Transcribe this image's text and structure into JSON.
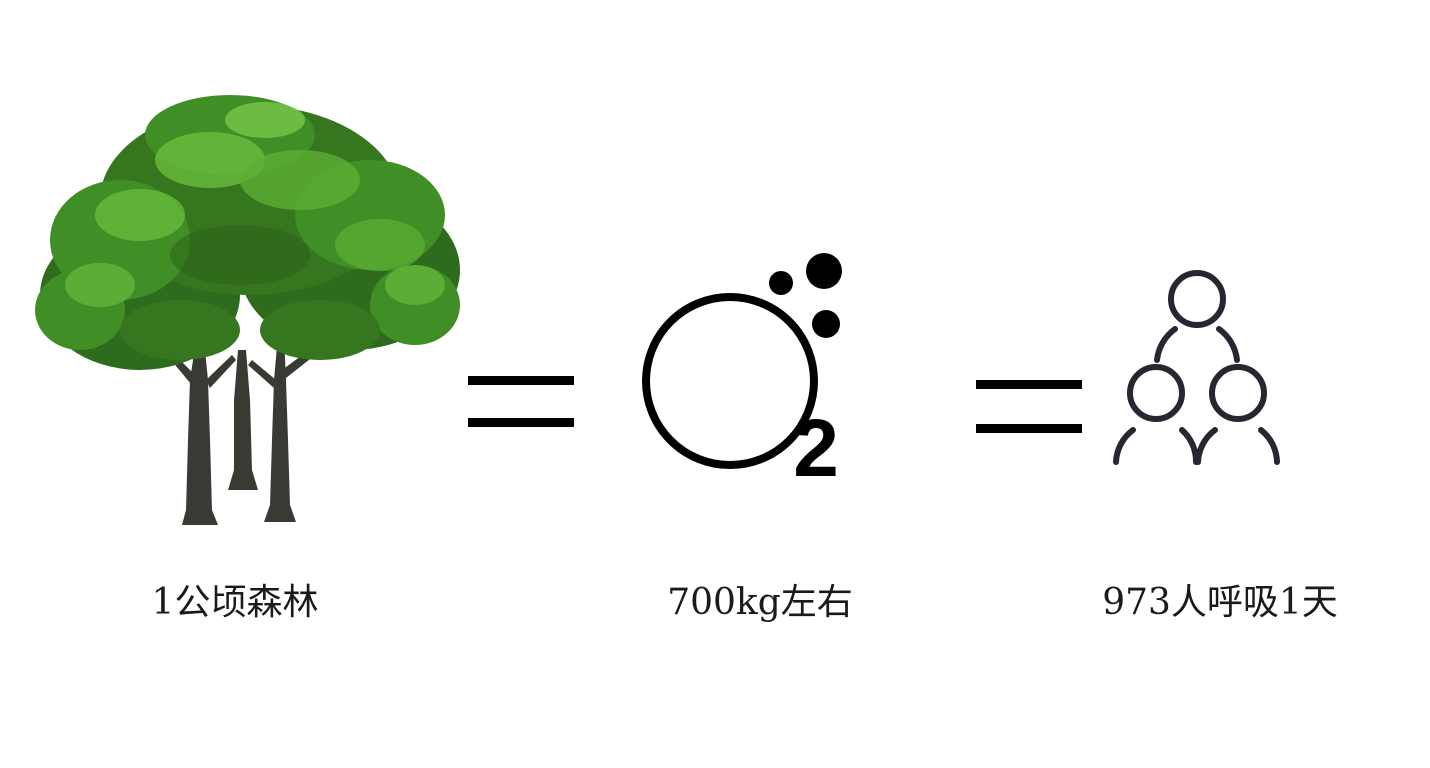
{
  "labels": {
    "forest": "1公顷森林",
    "oxygen": "700kg左右",
    "people": "973人呼吸1天"
  },
  "formula": {
    "subscript": "2"
  },
  "icons": {
    "forest": "tree-icon",
    "equals": "equals-icon",
    "oxygen": "oxygen-molecule-icon",
    "people": "people-group-icon"
  },
  "colors": {
    "tree_dark": "#2f6b1c",
    "tree_mid": "#3f8f26",
    "tree_light": "#6cc23f",
    "trunk": "#3a3a34",
    "ink": "#000000",
    "people_stroke": "#272732"
  }
}
